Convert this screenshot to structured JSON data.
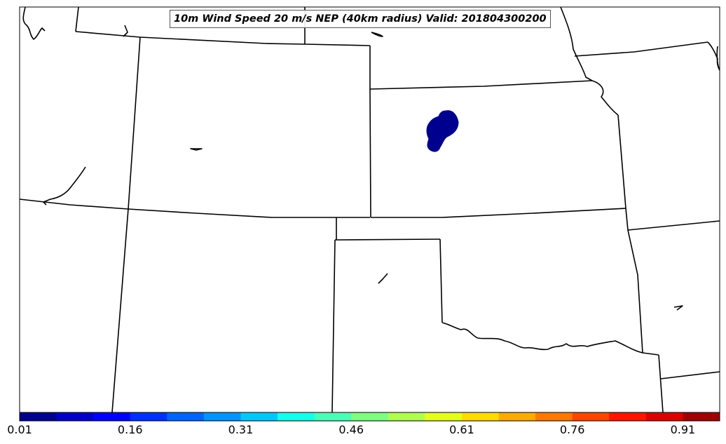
{
  "title": "10m Wind Speed 20 m/s NEP (40km radius) Valid: 201804300200",
  "colorbar": {
    "tick_labels": [
      "0.01",
      "0.16",
      "0.31",
      "0.46",
      "0.61",
      "0.76",
      "0.91"
    ],
    "colors": [
      "#00008f",
      "#0000c8",
      "#0000ff",
      "#0030ff",
      "#0064ff",
      "#0094ff",
      "#00c8ff",
      "#14ffea",
      "#48ffb6",
      "#7cff82",
      "#b0ff4e",
      "#e4ff1a",
      "#ffdc00",
      "#ffaa00",
      "#ff7800",
      "#ff4600",
      "#ff1400",
      "#dc0000",
      "#a00000"
    ]
  },
  "map": {
    "region": "Central Plains, United States",
    "probability_area_color": "#00008f"
  }
}
